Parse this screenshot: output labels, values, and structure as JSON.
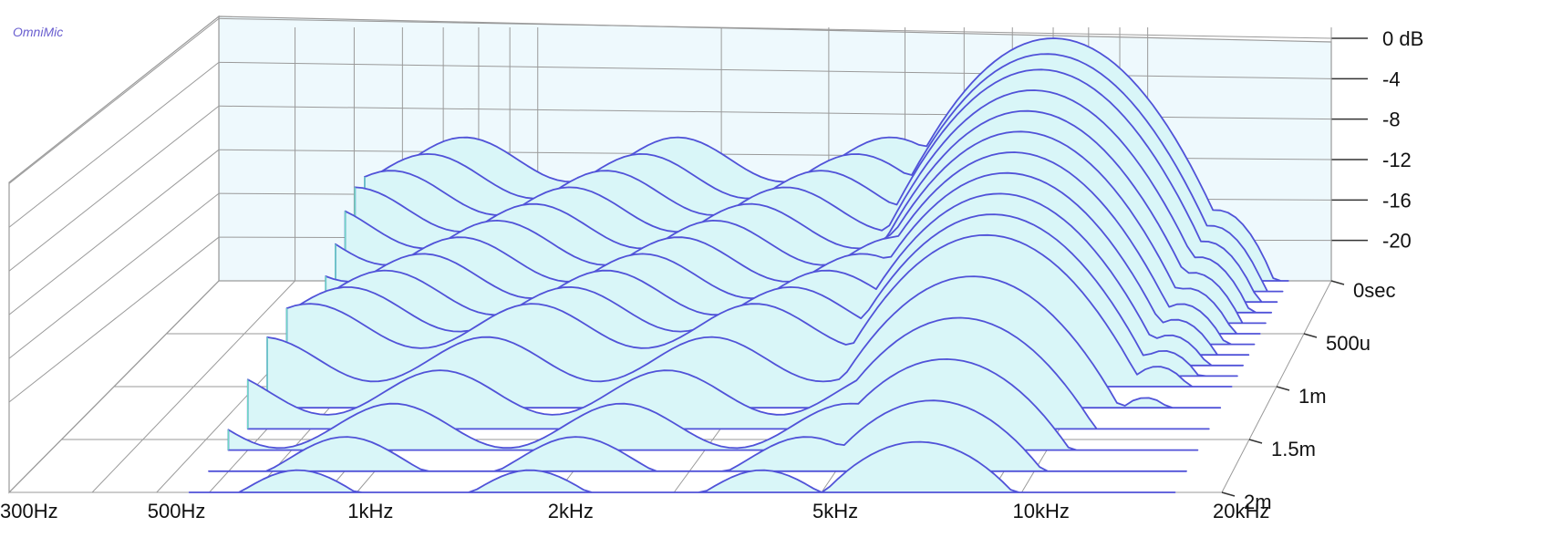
{
  "watermark": "OmniMic",
  "colors": {
    "grid": "#9a9a9a",
    "backwall": "#eef9fd",
    "fill": "#d9f6f8",
    "line": "#5052d8",
    "edge": "#6fd8c4",
    "watermark": "#6a5fd0"
  },
  "chart_data": {
    "type": "waterfall",
    "title": "",
    "x_axis": {
      "scale": "log",
      "range_hz": [
        300,
        20000
      ],
      "tick_labels": [
        "300Hz",
        "500Hz",
        "1kHz",
        "2kHz",
        "5kHz",
        "10kHz",
        "20kHz"
      ],
      "tick_values_hz": [
        300,
        500,
        1000,
        2000,
        5000,
        10000,
        20000
      ]
    },
    "y_axis": {
      "range_db": [
        -24,
        0
      ],
      "tick_labels": [
        "0 dB",
        "-4",
        "-8",
        "-12",
        "-16",
        "-20"
      ],
      "tick_values_db": [
        0,
        -4,
        -8,
        -12,
        -16,
        -20
      ]
    },
    "z_axis": {
      "range_sec": [
        0,
        0.002
      ],
      "tick_labels": [
        "0sec",
        "500u",
        "1m",
        "1.5m",
        "2m"
      ],
      "tick_values_sec": [
        0,
        0.0005,
        0.001,
        0.0015,
        0.002
      ]
    },
    "dominant_resonance": {
      "frequency_hz": 7000,
      "peak_db": 0
    },
    "series": [
      {
        "time_ms": 0.0,
        "points": [
          [
            7000,
            0
          ],
          [
            9000,
            -1
          ],
          [
            12000,
            -6
          ],
          [
            16000,
            -12
          ]
        ]
      },
      {
        "time_ms": 0.1,
        "points": [
          [
            7000,
            -0.5
          ],
          [
            9000,
            -2
          ],
          [
            12000,
            -7
          ]
        ]
      },
      {
        "time_ms": 0.2,
        "points": [
          [
            7000,
            -1
          ],
          [
            9000,
            -3
          ],
          [
            12000,
            -8
          ]
        ]
      },
      {
        "time_ms": 0.3,
        "points": [
          [
            7000,
            -2
          ],
          [
            9000,
            -4
          ],
          [
            12000,
            -9
          ]
        ]
      },
      {
        "time_ms": 0.4,
        "points": [
          [
            7000,
            -3
          ],
          [
            9000,
            -5
          ],
          [
            12000,
            -10
          ]
        ]
      },
      {
        "time_ms": 0.5,
        "points": [
          [
            7000,
            -4
          ],
          [
            9000,
            -6
          ],
          [
            12000,
            -11
          ]
        ]
      },
      {
        "time_ms": 0.6,
        "points": [
          [
            7000,
            -5
          ],
          [
            9000,
            -7
          ],
          [
            12000,
            -12
          ]
        ]
      },
      {
        "time_ms": 0.7,
        "points": [
          [
            7000,
            -6
          ],
          [
            9000,
            -8
          ],
          [
            12000,
            -13
          ]
        ]
      },
      {
        "time_ms": 0.8,
        "points": [
          [
            7000,
            -7
          ],
          [
            9000,
            -9
          ],
          [
            12000,
            -14
          ]
        ]
      },
      {
        "time_ms": 0.9,
        "points": [
          [
            7000,
            -8
          ],
          [
            9000,
            -10
          ],
          [
            12000,
            -15
          ]
        ]
      },
      {
        "time_ms": 1.0,
        "points": [
          [
            7000,
            -9
          ],
          [
            9000,
            -11
          ],
          [
            12000,
            -16
          ]
        ]
      },
      {
        "time_ms": 1.2,
        "points": [
          [
            7000,
            -11
          ],
          [
            9000,
            -13
          ],
          [
            12000,
            -18
          ]
        ]
      },
      {
        "time_ms": 1.4,
        "points": [
          [
            7000,
            -13
          ],
          [
            9000,
            -15
          ],
          [
            12000,
            -20
          ]
        ]
      },
      {
        "time_ms": 1.6,
        "points": [
          [
            7000,
            -15
          ],
          [
            9000,
            -17
          ],
          [
            12000,
            -22
          ]
        ]
      },
      {
        "time_ms": 1.8,
        "points": [
          [
            7000,
            -17
          ],
          [
            9000,
            -19
          ],
          [
            12000,
            -23
          ]
        ]
      },
      {
        "time_ms": 2.0,
        "points": [
          [
            7000,
            -19
          ],
          [
            9000,
            -21
          ],
          [
            12000,
            -24
          ]
        ]
      }
    ]
  }
}
